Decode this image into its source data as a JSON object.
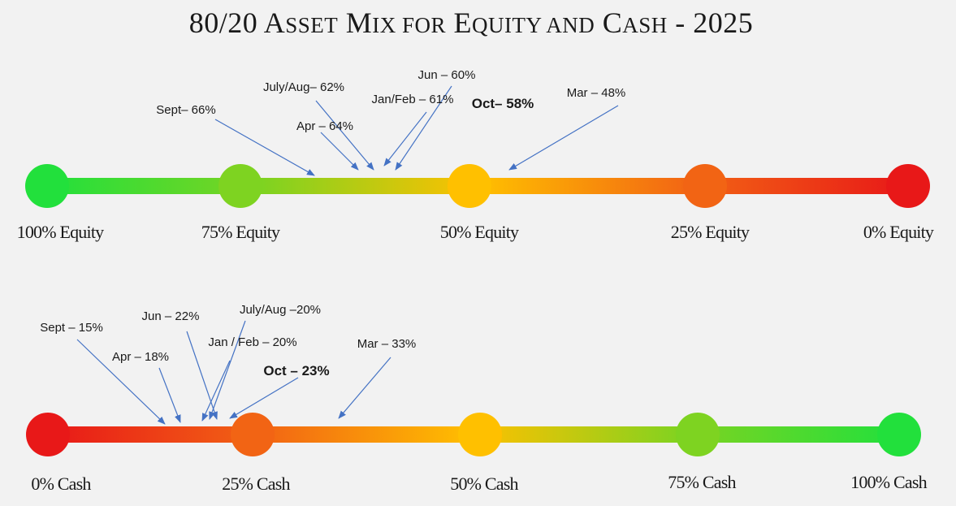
{
  "title": {
    "main_1": "80/20 A",
    "main_2": "SSET",
    "main_3": " M",
    "main_4": "IX FOR",
    "main_5": " E",
    "main_6": "QUITY AND",
    "main_7": " C",
    "main_8": "ASH",
    "main_9": " - 2025"
  },
  "colors": {
    "background": "#f2f2f2",
    "green": "#22e03c",
    "lime": "#7ed321",
    "amber": "#ffc000",
    "orange": "#f26414",
    "red": "#e81818",
    "arrow": "#4472c4"
  },
  "equity": {
    "scale": [
      "100% Equity",
      "75% Equity",
      "50% Equity",
      "25% Equity",
      "0% Equity"
    ],
    "annotations": [
      {
        "label": "Sept– 66%",
        "value": 66,
        "bold": false
      },
      {
        "label": "July/Aug– 62%",
        "value": 62,
        "bold": false
      },
      {
        "label": "Apr – 64%",
        "value": 64,
        "bold": false
      },
      {
        "label": "Jun – 60%",
        "value": 60,
        "bold": false
      },
      {
        "label": "Jan/Feb – 61%",
        "value": 61,
        "bold": false
      },
      {
        "label": "Oct– 58%",
        "value": 58,
        "bold": true
      },
      {
        "label": "Mar – 48%",
        "value": 48,
        "bold": false
      }
    ]
  },
  "cash": {
    "scale": [
      "0% Cash",
      "25% Cash",
      "50% Cash",
      "75% Cash",
      "100% Cash"
    ],
    "annotations": [
      {
        "label": "Sept – 15%",
        "value": 15,
        "bold": false
      },
      {
        "label": "Apr – 18%",
        "value": 18,
        "bold": false
      },
      {
        "label": "Jun – 22%",
        "value": 22,
        "bold": false
      },
      {
        "label": "July/Aug –20%",
        "value": 20,
        "bold": false
      },
      {
        "label": "Jan / Feb – 20%",
        "value": 20,
        "bold": false
      },
      {
        "label": "Oct – 23%",
        "value": 23,
        "bold": true
      },
      {
        "label": "Mar – 33%",
        "value": 33,
        "bold": false
      }
    ]
  }
}
